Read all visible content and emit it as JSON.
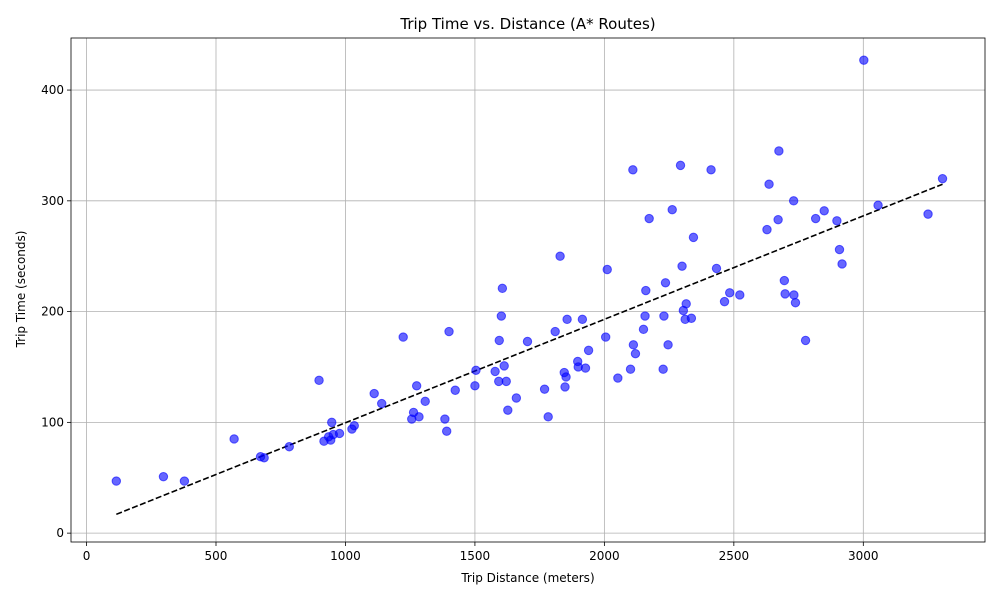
{
  "chart_data": {
    "type": "scatter",
    "title": "Trip Time vs. Distance (A* Routes)",
    "xlabel": "Trip Distance (meters)",
    "ylabel": "Trip Time (seconds)",
    "xlim": [
      -60,
      3470
    ],
    "ylim": [
      -8,
      447
    ],
    "xticks": [
      0,
      500,
      1000,
      1500,
      2000,
      2500,
      3000
    ],
    "yticks": [
      0,
      100,
      200,
      300,
      400
    ],
    "grid": true,
    "colors": {
      "points": "#0000ff",
      "fit_line": "#000000"
    },
    "series": [
      {
        "type": "scatter",
        "points": [
          [
            115,
            47
          ],
          [
            297,
            51
          ],
          [
            378,
            47
          ],
          [
            570,
            85
          ],
          [
            672,
            69
          ],
          [
            686,
            68
          ],
          [
            783,
            78
          ],
          [
            898,
            138
          ],
          [
            917,
            83
          ],
          [
            935,
            87
          ],
          [
            943,
            84
          ],
          [
            947,
            100
          ],
          [
            953,
            89
          ],
          [
            977,
            90
          ],
          [
            1025,
            94
          ],
          [
            1034,
            97
          ],
          [
            1111,
            126
          ],
          [
            1140,
            117
          ],
          [
            1223,
            177
          ],
          [
            1256,
            103
          ],
          [
            1263,
            109
          ],
          [
            1275,
            133
          ],
          [
            1284,
            105
          ],
          [
            1308,
            119
          ],
          [
            1384,
            103
          ],
          [
            1391,
            92
          ],
          [
            1400,
            182
          ],
          [
            1424,
            129
          ],
          [
            1500,
            133
          ],
          [
            1504,
            147
          ],
          [
            1578,
            146
          ],
          [
            1592,
            137
          ],
          [
            1594,
            174
          ],
          [
            1602,
            196
          ],
          [
            1606,
            221
          ],
          [
            1613,
            151
          ],
          [
            1621,
            137
          ],
          [
            1627,
            111
          ],
          [
            1660,
            122
          ],
          [
            1703,
            173
          ],
          [
            1769,
            130
          ],
          [
            1783,
            105
          ],
          [
            1810,
            182
          ],
          [
            1829,
            250
          ],
          [
            1845,
            145
          ],
          [
            1848,
            132
          ],
          [
            1852,
            141
          ],
          [
            1856,
            193
          ],
          [
            1897,
            155
          ],
          [
            1899,
            150
          ],
          [
            1915,
            193
          ],
          [
            1927,
            149
          ],
          [
            1939,
            165
          ],
          [
            2005,
            177
          ],
          [
            2011,
            238
          ],
          [
            2052,
            140
          ],
          [
            2101,
            148
          ],
          [
            2110,
            328
          ],
          [
            2112,
            170
          ],
          [
            2120,
            162
          ],
          [
            2151,
            184
          ],
          [
            2157,
            196
          ],
          [
            2160,
            219
          ],
          [
            2173,
            284
          ],
          [
            2227,
            148
          ],
          [
            2230,
            196
          ],
          [
            2236,
            226
          ],
          [
            2246,
            170
          ],
          [
            2262,
            292
          ],
          [
            2294,
            332
          ],
          [
            2300,
            241
          ],
          [
            2305,
            201
          ],
          [
            2312,
            193
          ],
          [
            2316,
            207
          ],
          [
            2336,
            194
          ],
          [
            2344,
            267
          ],
          [
            2412,
            328
          ],
          [
            2433,
            239
          ],
          [
            2464,
            209
          ],
          [
            2484,
            217
          ],
          [
            2523,
            215
          ],
          [
            2628,
            274
          ],
          [
            2636,
            315
          ],
          [
            2671,
            283
          ],
          [
            2674,
            345
          ],
          [
            2695,
            228
          ],
          [
            2698,
            216
          ],
          [
            2731,
            300
          ],
          [
            2732,
            215
          ],
          [
            2738,
            208
          ],
          [
            2777,
            174
          ],
          [
            2816,
            284
          ],
          [
            2849,
            291
          ],
          [
            2898,
            282
          ],
          [
            2908,
            256
          ],
          [
            2918,
            243
          ],
          [
            3002,
            427
          ],
          [
            3057,
            296
          ],
          [
            3250,
            288
          ],
          [
            3306,
            320
          ]
        ]
      },
      {
        "type": "line",
        "style": "dashed",
        "points": [
          [
            115,
            17
          ],
          [
            3306,
            315
          ]
        ]
      }
    ]
  }
}
